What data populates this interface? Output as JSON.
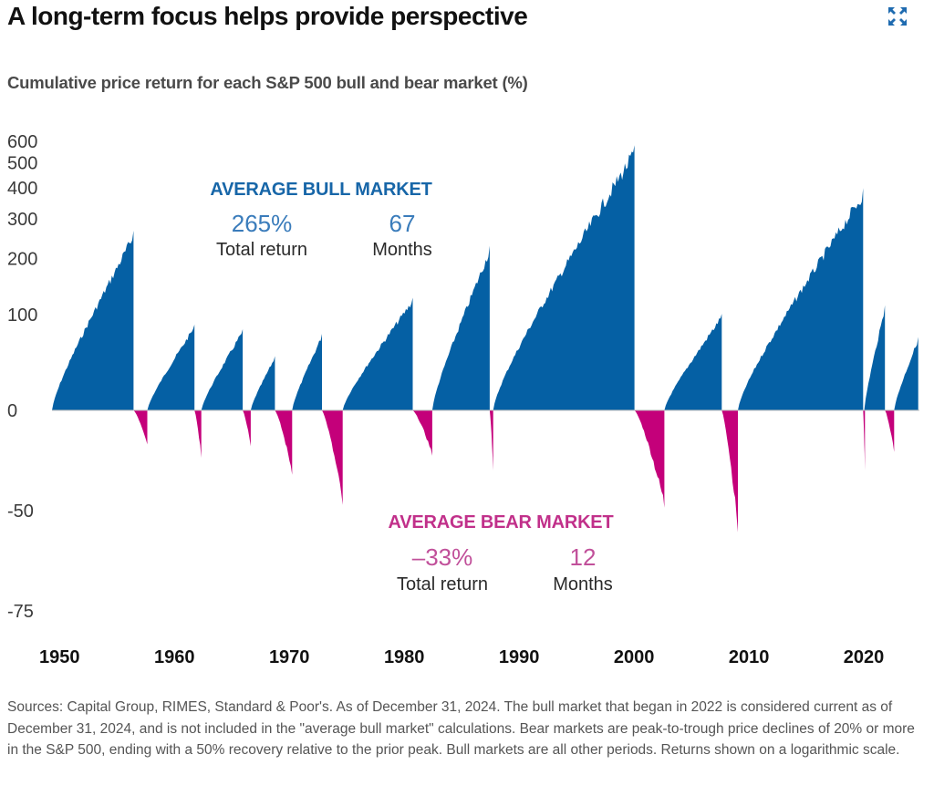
{
  "header": {
    "title": "A long-term focus helps provide perspective",
    "expand_icon": "expand-arrows-icon"
  },
  "chart_data": {
    "type": "area",
    "title": "A long-term focus helps provide perspective",
    "subtitle": "Cumulative price return for each S&P 500 bull and bear market (%)",
    "xlabel": "",
    "ylabel": "",
    "y_scale": "logarithmic",
    "x_range": [
      1949.5,
      2025
    ],
    "y_ticks": [
      "600",
      "500",
      "400",
      "300",
      "200",
      "100",
      "0",
      "-50",
      "-75"
    ],
    "y_tick_values": [
      600,
      500,
      400,
      300,
      200,
      100,
      0,
      -50,
      -75
    ],
    "x_ticks": [
      "1950",
      "1960",
      "1970",
      "1980",
      "1990",
      "2000",
      "2010",
      "2020"
    ],
    "x_tick_values": [
      1950,
      1960,
      1970,
      1980,
      1990,
      2000,
      2010,
      2020
    ],
    "colors": {
      "bull": "#0560a4",
      "bear": "#c4007a",
      "bull_text": "#1766a8",
      "bear_text": "#c1308a"
    },
    "series": [
      {
        "name": "Bull markets",
        "segments": [
          {
            "start": 1949.5,
            "end": 1956.6,
            "peak_return": 267
          },
          {
            "start": 1957.8,
            "end": 1961.9,
            "peak_return": 86
          },
          {
            "start": 1962.5,
            "end": 1966.1,
            "peak_return": 80
          },
          {
            "start": 1966.8,
            "end": 1968.9,
            "peak_return": 48
          },
          {
            "start": 1970.4,
            "end": 1973.0,
            "peak_return": 74
          },
          {
            "start": 1974.8,
            "end": 1980.9,
            "peak_return": 126
          },
          {
            "start": 1982.6,
            "end": 1987.6,
            "peak_return": 229
          },
          {
            "start": 1987.9,
            "end": 2000.2,
            "peak_return": 582
          },
          {
            "start": 2002.8,
            "end": 2007.8,
            "peak_return": 101
          },
          {
            "start": 2009.2,
            "end": 2020.1,
            "peak_return": 400
          },
          {
            "start": 2020.2,
            "end": 2022.0,
            "peak_return": 114
          },
          {
            "start": 2022.8,
            "end": 2024.9,
            "peak_return": 70
          }
        ]
      },
      {
        "name": "Bear markets",
        "segments": [
          {
            "start": 1956.6,
            "end": 1957.8,
            "trough_return": -21
          },
          {
            "start": 1961.9,
            "end": 1962.5,
            "trough_return": -28
          },
          {
            "start": 1966.1,
            "end": 1966.8,
            "trough_return": -22
          },
          {
            "start": 1968.9,
            "end": 1970.4,
            "trough_return": -36
          },
          {
            "start": 1973.0,
            "end": 1974.8,
            "trough_return": -48
          },
          {
            "start": 1980.9,
            "end": 1982.6,
            "trough_return": -27
          },
          {
            "start": 1987.6,
            "end": 1987.9,
            "trough_return": -34
          },
          {
            "start": 2000.2,
            "end": 2002.8,
            "trough_return": -49
          },
          {
            "start": 2007.8,
            "end": 2009.2,
            "trough_return": -57
          },
          {
            "start": 2020.1,
            "end": 2020.2,
            "trough_return": -34
          },
          {
            "start": 2022.0,
            "end": 2022.8,
            "trough_return": -25
          }
        ]
      }
    ],
    "annotations": {
      "bull": {
        "heading": "AVERAGE BULL MARKET",
        "return_value": "265%",
        "return_label": "Total return",
        "months_value": "67",
        "months_label": "Months"
      },
      "bear": {
        "heading": "AVERAGE BEAR MARKET",
        "return_value": "–33%",
        "return_label": "Total return",
        "months_value": "12",
        "months_label": "Months"
      }
    },
    "grid": false,
    "legend": "none"
  },
  "footnote": "Sources: Capital Group, RIMES, Standard & Poor's. As of December 31, 2024. The bull market that began in 2022 is considered current as of December 31, 2024, and is not included in the \"average bull market\" calculations. Bear markets are peak-to-trough price declines of 20% or more in the S&P 500, ending with a 50% recovery relative to the prior peak. Bull markets are all other periods. Returns shown on a logarithmic scale."
}
